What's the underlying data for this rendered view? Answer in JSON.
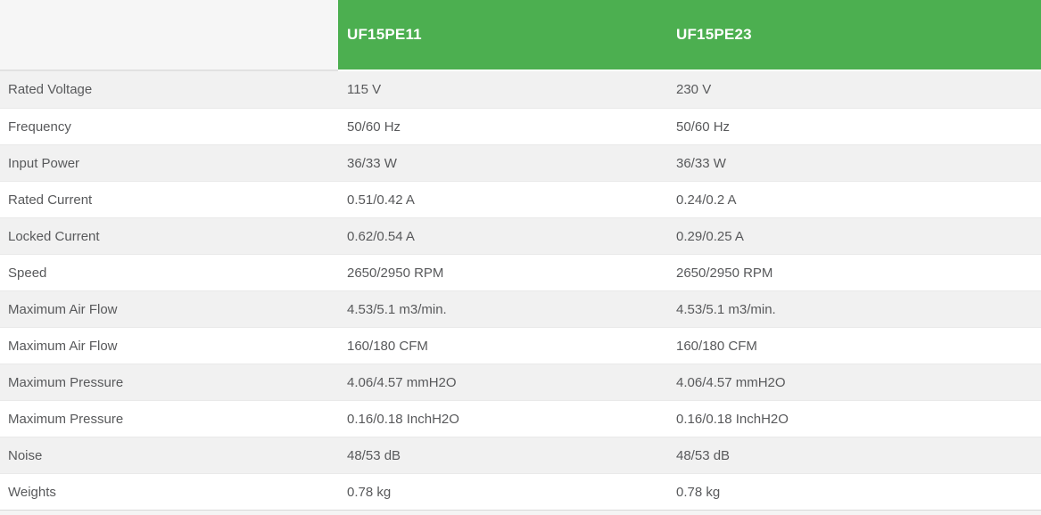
{
  "table": {
    "columns": [
      "UF15PE11",
      "UF15PE23"
    ],
    "rows": [
      {
        "label": "Rated Voltage",
        "values": [
          "115 V",
          "230 V"
        ]
      },
      {
        "label": "Frequency",
        "values": [
          "50/60 Hz",
          "50/60 Hz"
        ]
      },
      {
        "label": "Input Power",
        "values": [
          "36/33 W",
          "36/33 W"
        ]
      },
      {
        "label": "Rated Current",
        "values": [
          "0.51/0.42 A",
          "0.24/0.2 A"
        ]
      },
      {
        "label": "Locked Current",
        "values": [
          "0.62/0.54 A",
          "0.29/0.25 A"
        ]
      },
      {
        "label": "Speed",
        "values": [
          "2650/2950 RPM",
          "2650/2950 RPM"
        ]
      },
      {
        "label": "Maximum Air Flow",
        "values": [
          "4.53/5.1 m3/min.",
          "4.53/5.1 m3/min."
        ]
      },
      {
        "label": "Maximum Air Flow",
        "values": [
          "160/180 CFM",
          "160/180 CFM"
        ]
      },
      {
        "label": "Maximum Pressure",
        "values": [
          "4.06/4.57 mmH2O",
          "4.06/4.57 mmH2O"
        ]
      },
      {
        "label": "Maximum Pressure",
        "values": [
          "0.16/0.18 InchH2O",
          "0.16/0.18 InchH2O"
        ]
      },
      {
        "label": "Noise",
        "values": [
          "48/53 dB",
          "48/53 dB"
        ]
      },
      {
        "label": "Weights",
        "values": [
          "0.78 kg",
          "0.78 kg"
        ]
      }
    ]
  },
  "colors": {
    "header_green": "#4CAF50",
    "header_text": "#ffffff",
    "row_alt_gray": "#f1f1f1",
    "row_white": "#ffffff",
    "body_text": "#58595b",
    "header_blank_bg": "#f6f6f6",
    "divider": "#e9e9e9",
    "partial_row_bg": "#f4f4f4"
  }
}
